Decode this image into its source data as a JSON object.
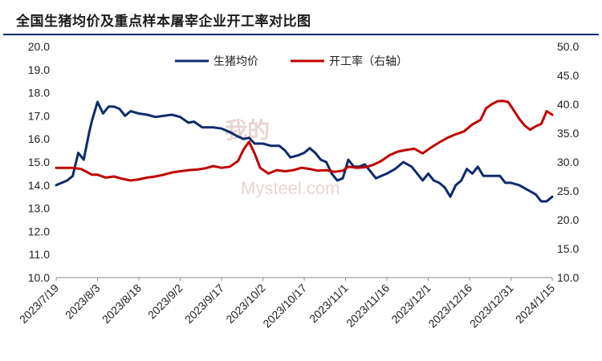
{
  "title": "全国生猪均价及重点样本屠宰企业开工率对比图",
  "watermark": {
    "top": "我的",
    "main": "Mysteel.com"
  },
  "colors": {
    "price": "#0f2b6b",
    "rate": "#c00000",
    "title_rule": "#0b2a6e"
  },
  "chart_data": {
    "type": "line",
    "title": "全国生猪均价及重点样本屠宰企业开工率对比图",
    "legend_position": "top",
    "grid": false,
    "x_ticks": [
      "2023/7/19",
      "2023/8/3",
      "2023/8/18",
      "2023/9/2",
      "2023/9/17",
      "2023/10/2",
      "2023/10/17",
      "2023/11/1",
      "2023/11/16",
      "2023/12/1",
      "2023/12/16",
      "2023/12/31",
      "2024/1/15"
    ],
    "x_range": [
      "2023/7/19",
      "2024/1/15"
    ],
    "y_left": {
      "min": 10.0,
      "max": 20.0,
      "ticks": [
        "10.0",
        "11.0",
        "12.0",
        "13.0",
        "14.0",
        "15.0",
        "16.0",
        "17.0",
        "18.0",
        "19.0",
        "20.0"
      ]
    },
    "y_right": {
      "min": 10.0,
      "max": 50.0,
      "ticks": [
        "10.0",
        "15.0",
        "20.0",
        "25.0",
        "30.0",
        "35.0",
        "40.0",
        "45.0",
        "50.0"
      ]
    },
    "series": [
      {
        "name": "生猪均价",
        "axis": "left",
        "points": [
          [
            "2023/7/19",
            14.0
          ],
          [
            "2023/7/21",
            14.1
          ],
          [
            "2023/7/23",
            14.2
          ],
          [
            "2023/7/25",
            14.4
          ],
          [
            "2023/7/27",
            15.4
          ],
          [
            "2023/7/29",
            15.1
          ],
          [
            "2023/7/31",
            16.3
          ],
          [
            "2023/8/1",
            16.8
          ],
          [
            "2023/8/3",
            17.6
          ],
          [
            "2023/8/5",
            17.1
          ],
          [
            "2023/8/7",
            17.4
          ],
          [
            "2023/8/9",
            17.4
          ],
          [
            "2023/8/11",
            17.3
          ],
          [
            "2023/8/13",
            17.0
          ],
          [
            "2023/8/15",
            17.2
          ],
          [
            "2023/8/18",
            17.1
          ],
          [
            "2023/8/21",
            17.05
          ],
          [
            "2023/8/24",
            16.95
          ],
          [
            "2023/8/27",
            17.0
          ],
          [
            "2023/8/30",
            17.05
          ],
          [
            "2023/9/2",
            16.95
          ],
          [
            "2023/9/5",
            16.7
          ],
          [
            "2023/9/7",
            16.75
          ],
          [
            "2023/9/10",
            16.5
          ],
          [
            "2023/9/14",
            16.5
          ],
          [
            "2023/9/17",
            16.45
          ],
          [
            "2023/9/20",
            16.3
          ],
          [
            "2023/9/23",
            16.1
          ],
          [
            "2023/9/25",
            16.0
          ],
          [
            "2023/9/27",
            16.05
          ],
          [
            "2023/9/29",
            15.8
          ],
          [
            "2023/10/2",
            15.8
          ],
          [
            "2023/10/5",
            15.7
          ],
          [
            "2023/10/8",
            15.7
          ],
          [
            "2023/10/10",
            15.5
          ],
          [
            "2023/10/12",
            15.2
          ],
          [
            "2023/10/15",
            15.3
          ],
          [
            "2023/10/17",
            15.4
          ],
          [
            "2023/10/19",
            15.6
          ],
          [
            "2023/10/21",
            15.4
          ],
          [
            "2023/10/23",
            15.1
          ],
          [
            "2023/10/25",
            15.0
          ],
          [
            "2023/10/27",
            14.5
          ],
          [
            "2023/10/29",
            14.2
          ],
          [
            "2023/10/31",
            14.3
          ],
          [
            "2023/11/2",
            15.1
          ],
          [
            "2023/11/4",
            14.8
          ],
          [
            "2023/11/6",
            14.8
          ],
          [
            "2023/11/8",
            14.9
          ],
          [
            "2023/11/10",
            14.6
          ],
          [
            "2023/11/12",
            14.3
          ],
          [
            "2023/11/14",
            14.4
          ],
          [
            "2023/11/16",
            14.5
          ],
          [
            "2023/11/19",
            14.7
          ],
          [
            "2023/11/22",
            15.0
          ],
          [
            "2023/11/25",
            14.8
          ],
          [
            "2023/11/27",
            14.5
          ],
          [
            "2023/11/29",
            14.2
          ],
          [
            "2023/12/1",
            14.5
          ],
          [
            "2023/12/3",
            14.2
          ],
          [
            "2023/12/5",
            14.1
          ],
          [
            "2023/12/7",
            13.9
          ],
          [
            "2023/12/9",
            13.5
          ],
          [
            "2023/12/11",
            14.0
          ],
          [
            "2023/12/13",
            14.2
          ],
          [
            "2023/12/15",
            14.7
          ],
          [
            "2023/12/17",
            14.5
          ],
          [
            "2023/12/19",
            14.8
          ],
          [
            "2023/12/21",
            14.4
          ],
          [
            "2023/12/24",
            14.4
          ],
          [
            "2023/12/27",
            14.4
          ],
          [
            "2023/12/29",
            14.1
          ],
          [
            "2023/12/31",
            14.1
          ],
          [
            "2024/1/3",
            14.0
          ],
          [
            "2024/1/6",
            13.8
          ],
          [
            "2024/1/9",
            13.6
          ],
          [
            "2024/1/11",
            13.3
          ],
          [
            "2024/1/13",
            13.3
          ],
          [
            "2024/1/15",
            13.5
          ]
        ]
      },
      {
        "name": "开工率（右轴）",
        "axis": "right",
        "points": [
          [
            "2023/7/19",
            29.0
          ],
          [
            "2023/7/22",
            29.0
          ],
          [
            "2023/7/25",
            29.0
          ],
          [
            "2023/7/28",
            28.8
          ],
          [
            "2023/7/30",
            28.3
          ],
          [
            "2023/8/1",
            27.8
          ],
          [
            "2023/8/3",
            27.8
          ],
          [
            "2023/8/6",
            27.3
          ],
          [
            "2023/8/9",
            27.5
          ],
          [
            "2023/8/12",
            27.1
          ],
          [
            "2023/8/15",
            26.8
          ],
          [
            "2023/8/18",
            27.0
          ],
          [
            "2023/8/21",
            27.3
          ],
          [
            "2023/8/24",
            27.5
          ],
          [
            "2023/8/27",
            27.8
          ],
          [
            "2023/8/30",
            28.2
          ],
          [
            "2023/9/2",
            28.4
          ],
          [
            "2023/9/5",
            28.6
          ],
          [
            "2023/9/8",
            28.7
          ],
          [
            "2023/9/11",
            28.9
          ],
          [
            "2023/9/14",
            29.3
          ],
          [
            "2023/9/17",
            29.0
          ],
          [
            "2023/9/20",
            29.2
          ],
          [
            "2023/9/23",
            30.2
          ],
          [
            "2023/9/25",
            32.2
          ],
          [
            "2023/9/27",
            33.5
          ],
          [
            "2023/9/29",
            31.5
          ],
          [
            "2023/10/1",
            29.0
          ],
          [
            "2023/10/4",
            28.0
          ],
          [
            "2023/10/7",
            28.6
          ],
          [
            "2023/10/10",
            28.4
          ],
          [
            "2023/10/13",
            28.6
          ],
          [
            "2023/10/16",
            29.0
          ],
          [
            "2023/10/19",
            28.8
          ],
          [
            "2023/10/22",
            28.5
          ],
          [
            "2023/10/25",
            28.6
          ],
          [
            "2023/10/28",
            28.3
          ],
          [
            "2023/10/31",
            28.5
          ],
          [
            "2023/11/2",
            29.2
          ],
          [
            "2023/11/5",
            29.0
          ],
          [
            "2023/11/8",
            29.1
          ],
          [
            "2023/11/11",
            29.5
          ],
          [
            "2023/11/14",
            30.2
          ],
          [
            "2023/11/17",
            31.2
          ],
          [
            "2023/11/20",
            31.8
          ],
          [
            "2023/11/23",
            32.1
          ],
          [
            "2023/11/26",
            32.3
          ],
          [
            "2023/11/29",
            31.5
          ],
          [
            "2023/12/2",
            32.5
          ],
          [
            "2023/12/5",
            33.4
          ],
          [
            "2023/12/8",
            34.2
          ],
          [
            "2023/12/11",
            34.8
          ],
          [
            "2023/12/14",
            35.3
          ],
          [
            "2023/12/17",
            36.5
          ],
          [
            "2023/12/20",
            37.3
          ],
          [
            "2023/12/22",
            39.3
          ],
          [
            "2023/12/24",
            40.0
          ],
          [
            "2023/12/26",
            40.5
          ],
          [
            "2023/12/28",
            40.6
          ],
          [
            "2023/12/30",
            40.4
          ],
          [
            "2024/1/1",
            39.0
          ],
          [
            "2024/1/3",
            37.5
          ],
          [
            "2024/1/5",
            36.3
          ],
          [
            "2024/1/7",
            35.6
          ],
          [
            "2024/1/9",
            36.2
          ],
          [
            "2024/1/11",
            36.6
          ],
          [
            "2024/1/13",
            38.8
          ],
          [
            "2024/1/15",
            38.2
          ]
        ]
      }
    ]
  }
}
